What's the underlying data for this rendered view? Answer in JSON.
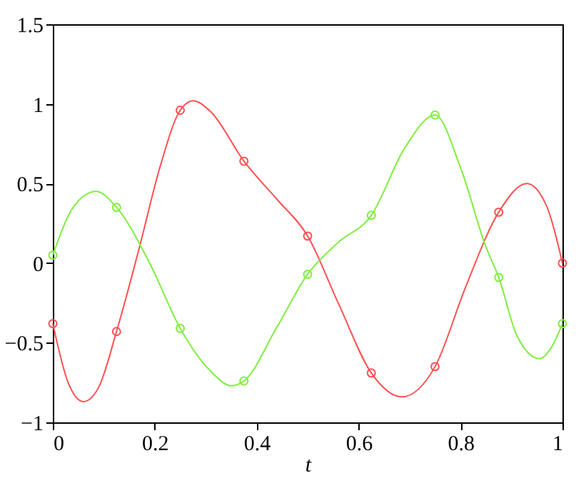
{
  "chart_data": {
    "type": "line",
    "xlabel": "t",
    "xlim": [
      0,
      1
    ],
    "xticks": [
      0,
      0.2,
      0.4,
      0.6,
      0.8,
      1
    ],
    "ylim": [
      -1,
      1.5
    ],
    "yticks": [
      -1,
      -0.5,
      0,
      0.5,
      1,
      1.5
    ],
    "grid": false,
    "series": [
      {
        "marker": "none",
        "color": "#ff5050",
        "x": [
          0,
          0.03,
          0.06,
          0.09,
          0.125,
          0.17,
          0.21,
          0.25,
          0.275,
          0.31,
          0.375,
          0.44,
          0.5,
          0.56,
          0.625,
          0.685,
          0.75,
          0.81,
          0.875,
          0.93,
          0.97,
          1
        ],
        "values": [
          -0.38,
          -0.75,
          -0.87,
          -0.78,
          -0.43,
          0.1,
          0.6,
          0.96,
          1.02,
          0.95,
          0.64,
          0.4,
          0.17,
          -0.25,
          -0.69,
          -0.84,
          -0.65,
          -0.15,
          0.32,
          0.5,
          0.35,
          0.0
        ]
      },
      {
        "marker": "none",
        "color": "#80ee40",
        "x": [
          0,
          0.04,
          0.085,
          0.125,
          0.19,
          0.25,
          0.31,
          0.35,
          0.375,
          0.44,
          0.5,
          0.56,
          0.625,
          0.69,
          0.75,
          0.8,
          0.85,
          0.875,
          0.91,
          0.955,
          0.98,
          1
        ],
        "values": [
          0.05,
          0.35,
          0.45,
          0.35,
          0.0,
          -0.41,
          -0.68,
          -0.77,
          -0.74,
          -0.4,
          -0.07,
          0.13,
          0.3,
          0.72,
          0.93,
          0.6,
          0.1,
          -0.09,
          -0.45,
          -0.6,
          -0.52,
          -0.38
        ]
      },
      {
        "type": "scatter",
        "marker": "circle",
        "color": "#ff5050",
        "x": [
          0,
          0.125,
          0.25,
          0.375,
          0.5,
          0.625,
          0.75,
          0.875,
          1
        ],
        "values": [
          -0.38,
          -0.43,
          0.96,
          0.64,
          0.17,
          -0.69,
          -0.65,
          0.32,
          0.0
        ]
      },
      {
        "type": "scatter",
        "marker": "circle",
        "color": "#80ee40",
        "x": [
          0,
          0.125,
          0.25,
          0.375,
          0.5,
          0.625,
          0.75,
          0.875,
          1
        ],
        "values": [
          0.05,
          0.35,
          -0.41,
          -0.74,
          -0.07,
          0.3,
          0.93,
          -0.09,
          -0.38
        ]
      }
    ]
  }
}
